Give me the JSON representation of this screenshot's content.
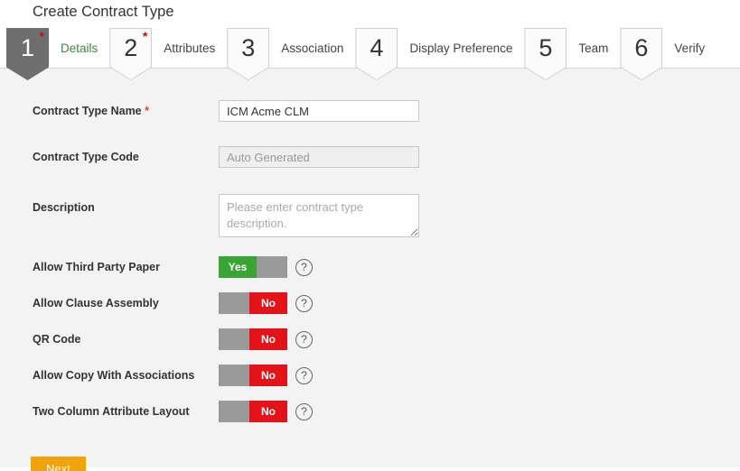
{
  "page": {
    "title": "Create Contract Type"
  },
  "wizard": {
    "steps": [
      {
        "number": "1",
        "label": "Details",
        "required_mark": "*",
        "active": true
      },
      {
        "number": "2",
        "label": "Attributes",
        "required_mark": "*",
        "active": false
      },
      {
        "number": "3",
        "label": "Association",
        "required_mark": "",
        "active": false
      },
      {
        "number": "4",
        "label": "Display Preference",
        "required_mark": "",
        "active": false
      },
      {
        "number": "5",
        "label": "Team",
        "required_mark": "",
        "active": false
      },
      {
        "number": "6",
        "label": "Verify",
        "required_mark": "",
        "active": false
      }
    ]
  },
  "form": {
    "help_glyph": "?",
    "fields": {
      "contract_type_name": {
        "label": "Contract Type Name",
        "required_mark": "*",
        "value": "ICM Acme CLM"
      },
      "contract_type_code": {
        "label": "Contract Type Code",
        "placeholder": "Auto Generated"
      },
      "description": {
        "label": "Description",
        "placeholder": "Please enter contract type description."
      }
    },
    "toggles": [
      {
        "label": "Allow Third Party Paper",
        "value": "Yes"
      },
      {
        "label": "Allow Clause Assembly",
        "value": "No"
      },
      {
        "label": "QR Code",
        "value": "No"
      },
      {
        "label": "Allow Copy With Associations",
        "value": "No"
      },
      {
        "label": "Two Column Attribute Layout",
        "value": "No"
      }
    ]
  },
  "actions": {
    "next_label": "Next"
  },
  "colors": {
    "active_step_bg": "#6e6e6e",
    "active_step_label": "#3a8a3a",
    "toggle_yes": "#3aa435",
    "toggle_no": "#e41319",
    "toggle_off": "#9a9a9a",
    "next_button": "#f0a30c",
    "required_mark": "#e53935",
    "content_bg": "#f3f3f3"
  }
}
